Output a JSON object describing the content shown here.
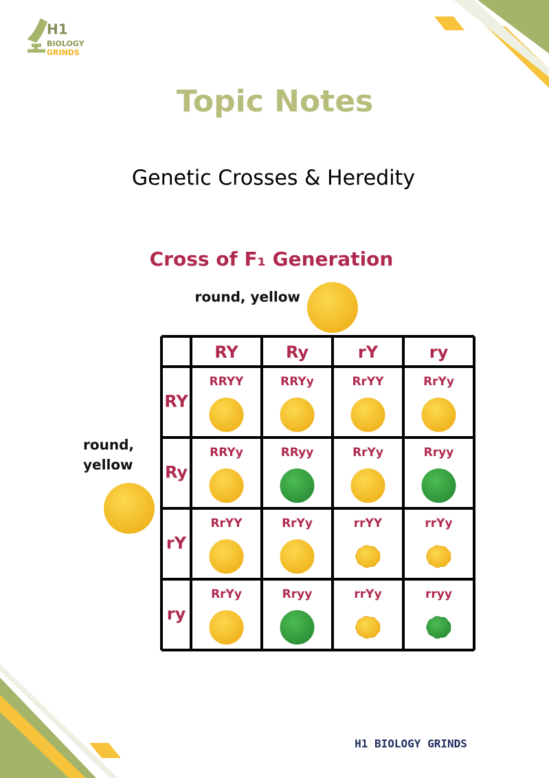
{
  "header": {
    "logo": {
      "line1": "H1",
      "line2": "BIOLOGY",
      "line3": "GRINDS"
    },
    "title": "Topic Notes",
    "subtitle": "Genetic Crosses & Heredity"
  },
  "diagram": {
    "title": "Cross of F₁ Generation",
    "top_parent": "round, yellow",
    "left_parent": [
      "round,",
      "yellow"
    ],
    "columns": [
      "RY",
      "Ry",
      "rY",
      "ry"
    ],
    "rows": [
      {
        "label": "RY",
        "cells": [
          "RRYY",
          "RRYy",
          "RrYY",
          "RrYy"
        ]
      },
      {
        "label": "Ry",
        "cells": [
          "RRYy",
          "RRyy",
          "RrYy",
          "Rryy"
        ]
      },
      {
        "label": "rY",
        "cells": [
          "RrYY",
          "RrYy",
          "rrYY",
          "rrYy"
        ]
      },
      {
        "label": "ry",
        "cells": [
          "RrYy",
          "Rryy",
          "rrYy",
          "rryy"
        ]
      }
    ]
  },
  "footer": "H1 BIOLOGY GRINDS"
}
